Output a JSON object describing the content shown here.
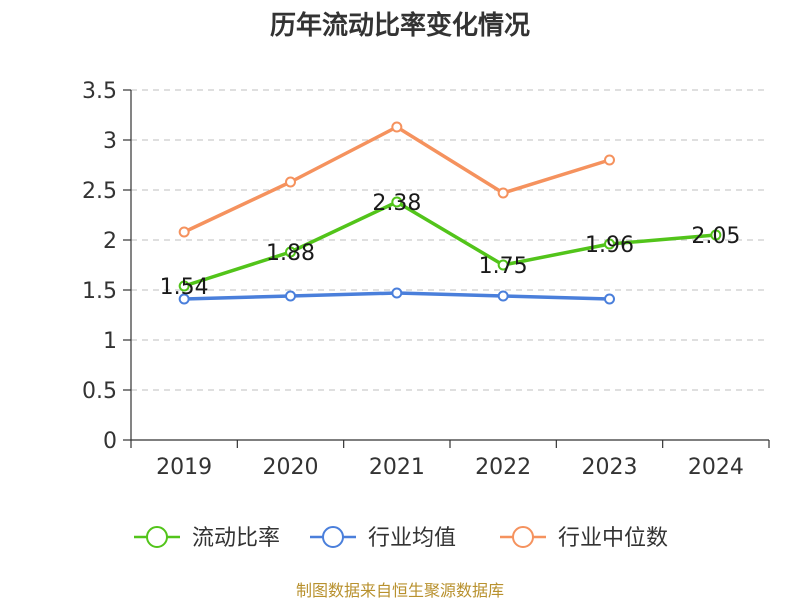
{
  "chart_data": {
    "type": "line",
    "title": "历年流动比率变化情况",
    "categories": [
      "2019",
      "2020",
      "2021",
      "2022",
      "2023",
      "2024"
    ],
    "ylim": [
      0,
      3.5
    ],
    "yticks": [
      "0",
      "0.5",
      "1",
      "1.5",
      "2",
      "2.5",
      "3",
      "3.5"
    ],
    "grid": true,
    "legend_position": "bottom",
    "series": [
      {
        "name": "流动比率",
        "color": "#52c41a",
        "values": [
          1.54,
          1.88,
          2.38,
          1.75,
          1.96,
          2.05
        ],
        "labels": [
          "1.54",
          "1.88",
          "2.38",
          "1.75",
          "1.96",
          "2.05"
        ]
      },
      {
        "name": "行业均值",
        "color": "#4a7fdb",
        "values": [
          1.41,
          1.44,
          1.47,
          1.44,
          1.41,
          null
        ]
      },
      {
        "name": "行业中位数",
        "color": "#f5925e",
        "values": [
          2.08,
          2.58,
          3.13,
          2.47,
          2.8,
          null
        ]
      }
    ]
  },
  "source": "制图数据来自恒生聚源数据库"
}
